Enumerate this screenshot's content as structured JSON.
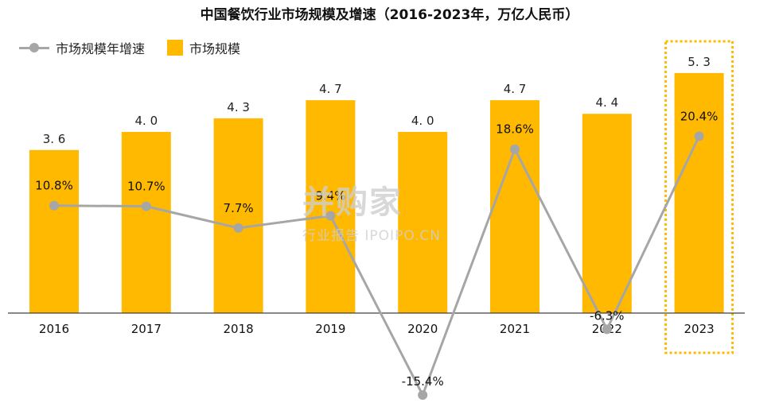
{
  "title": "中国餐饮行业市场规模及增速（2016-2023年，万亿人民币）",
  "legend": {
    "line_label": "市场规模年增速",
    "bar_label": "市场规模",
    "position": "top-left"
  },
  "watermark": {
    "main": "并购家",
    "sub": "行业报告 IPOIPO.CN"
  },
  "colors": {
    "bar": "#FFB900",
    "line": "#A6A6A6",
    "highlight_border": "#FFB900",
    "axis": "#404040"
  },
  "chart_data": {
    "type": "bar",
    "title": "中国餐饮行业市场规模及增速（2016-2023年，万亿人民币）",
    "categories": [
      "2016",
      "2017",
      "2018",
      "2019",
      "2020",
      "2021",
      "2022",
      "2023"
    ],
    "series": [
      {
        "name": "市场规模",
        "type": "bar",
        "values": [
          3.6,
          4.0,
          4.3,
          4.7,
          4.0,
          4.7,
          4.4,
          5.3
        ],
        "labels": [
          "3. 6",
          "4. 0",
          "4. 3",
          "4. 7",
          "4. 0",
          "4. 7",
          "4. 4",
          "5. 3"
        ]
      },
      {
        "name": "市场规模年增速",
        "type": "line",
        "unit": "%",
        "values": [
          10.8,
          10.7,
          7.7,
          9.4,
          -15.4,
          18.6,
          -6.3,
          20.4
        ],
        "labels": [
          "10.8%",
          "10.7%",
          "7.7%",
          "9.4%",
          "-15.4%",
          "18.6%",
          "-6.3%",
          "20.4%"
        ]
      }
    ],
    "highlight_category": "2023",
    "grid": false
  }
}
